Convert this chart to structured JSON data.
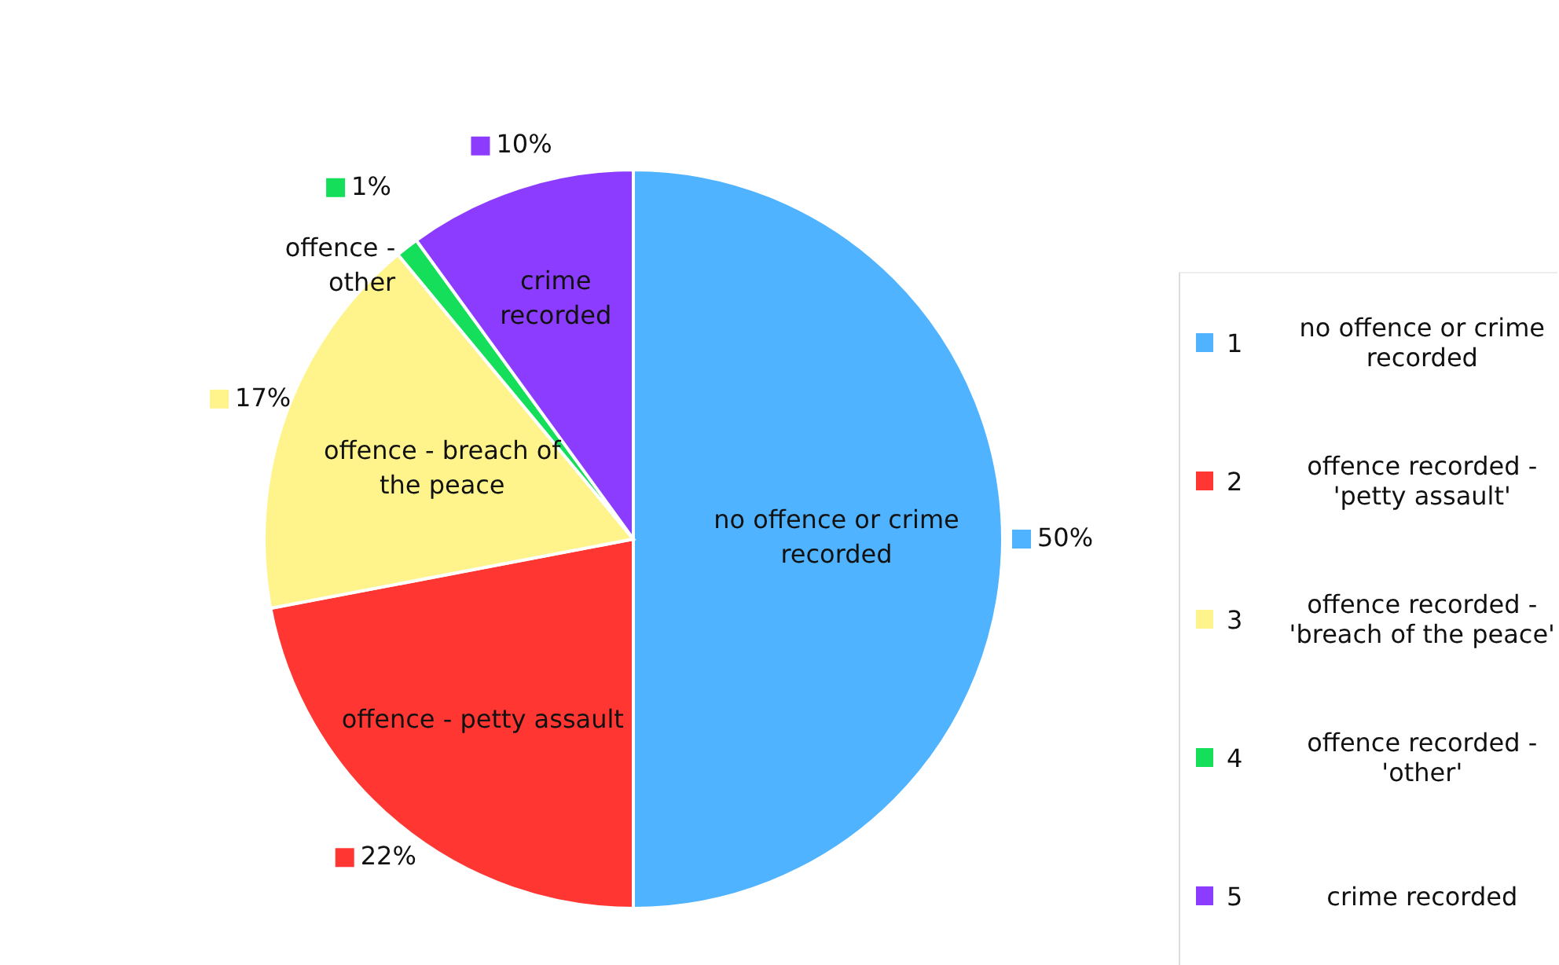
{
  "chart_data": {
    "type": "pie",
    "categories": [
      "no offence or crime recorded",
      "offence - petty assault",
      "offence - breach of the peace",
      "offence - other",
      "crime recorded"
    ],
    "values": [
      50,
      22,
      17,
      1,
      10
    ],
    "value_labels": [
      "50%",
      "22%",
      "17%",
      "1%",
      "10%"
    ],
    "colors": [
      "#4fb3ff",
      "#ff3631",
      "#fff48c",
      "#14de5a",
      "#8c3cff"
    ],
    "annotations": [
      "1",
      "no offence or crime recorded",
      "2",
      "offence recorded - 'petty assault'",
      "3",
      "offence recorded - 'breach of the peace'",
      "4",
      "offence recorded - 'other'",
      "5",
      "crime recorded"
    ],
    "legend": "right"
  }
}
